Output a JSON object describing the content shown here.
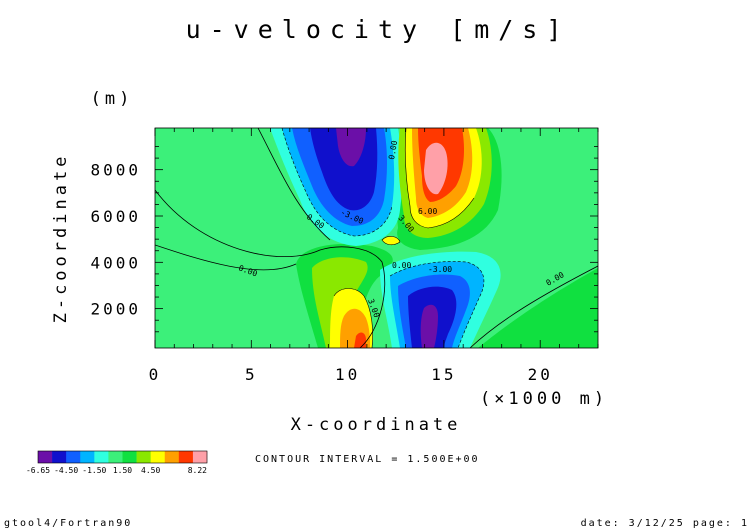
{
  "chart_data": {
    "type": "contour",
    "title": "u-velocity [m/s]",
    "xlabel": "X-coordinate",
    "x_unit": "(×1000 m)",
    "ylabel": "Z-coordinate",
    "y_unit": "(m)",
    "xlim": [
      0,
      23
    ],
    "ylim": [
      300,
      9800
    ],
    "x_ticks": [
      0,
      5,
      10,
      15,
      20
    ],
    "y_ticks": [
      2000,
      4000,
      6000,
      8000
    ],
    "contour_interval_text": "CONTOUR INTERVAL = 1.500E+00",
    "contour_interval": 1.5,
    "value_range": [
      -6.65,
      8.22
    ],
    "colorbar": {
      "tick_labels": [
        "-6.65",
        "-4.50",
        "-1.50",
        "1.50",
        "4.50",
        "8.22"
      ],
      "colors": [
        "#6b0fa8",
        "#1010cc",
        "#1060ff",
        "#00b4ff",
        "#30ffe0",
        "#3cf07a",
        "#10e040",
        "#8ae800",
        "#ffff00",
        "#ffa000",
        "#ff3800",
        "#ffa0a8"
      ]
    },
    "contour_labels": [
      "0.00",
      "3.00",
      "-3.00",
      "6.00"
    ],
    "features": [
      {
        "kind": "negative-core",
        "x": 10,
        "z": 8500,
        "value": -6.65
      },
      {
        "kind": "positive-core",
        "x": 14.5,
        "z": 7800,
        "value": 8.22
      },
      {
        "kind": "negative-core",
        "x": 14.5,
        "z": 1500,
        "value": -6.5
      },
      {
        "kind": "positive-core",
        "x": 10.3,
        "z": 1500,
        "value": 7.5
      }
    ]
  },
  "footer": {
    "left": "gtool4/Fortran90",
    "right": "date: 3/12/25 page: 1"
  }
}
